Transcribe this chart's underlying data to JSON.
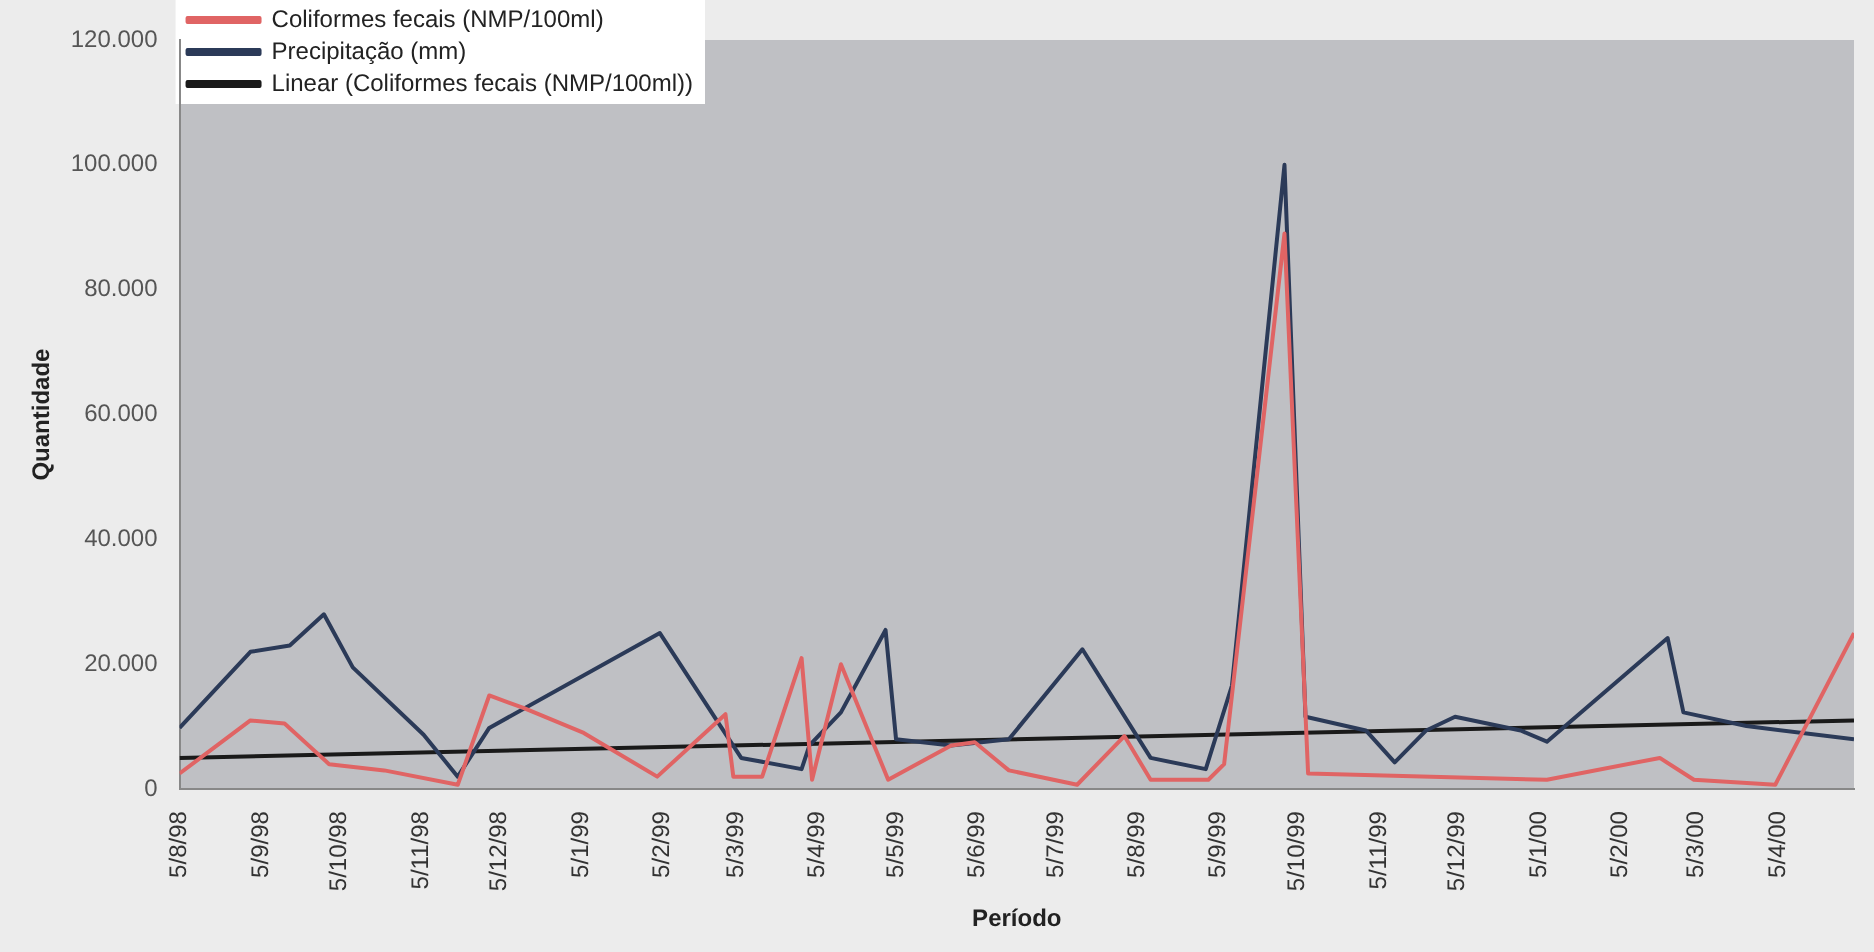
{
  "chart_data": {
    "type": "line",
    "xlabel": "Período",
    "ylabel": "Quantidade",
    "legend": "top left",
    "grid": false,
    "marker": "none",
    "xlim": [
      "1998-08-05",
      "2000-05-04"
    ],
    "xticks": [
      {
        "value": "1998-08-05",
        "label": "5/8/98"
      },
      {
        "value": "1998-09-05",
        "label": "5/9/98"
      },
      {
        "value": "1998-10-05",
        "label": "5/10/98"
      },
      {
        "value": "1998-11-05",
        "label": "5/11/98"
      },
      {
        "value": "1998-12-05",
        "label": "5/12/98"
      },
      {
        "value": "1999-01-05",
        "label": "5/1/99"
      },
      {
        "value": "1999-02-05",
        "label": "5/2/99"
      },
      {
        "value": "1999-03-05",
        "label": "5/3/99"
      },
      {
        "value": "1999-04-05",
        "label": "5/4/99"
      },
      {
        "value": "1999-05-05",
        "label": "5/5/99"
      },
      {
        "value": "1999-06-05",
        "label": "5/6/99"
      },
      {
        "value": "1999-07-05",
        "label": "5/7/99"
      },
      {
        "value": "1999-08-05",
        "label": "5/8/99"
      },
      {
        "value": "1999-09-05",
        "label": "5/9/99"
      },
      {
        "value": "1999-10-05",
        "label": "5/10/99"
      },
      {
        "value": "1999-11-05",
        "label": "5/11/99"
      },
      {
        "value": "1999-12-05",
        "label": "5/12/99"
      },
      {
        "value": "2000-01-05",
        "label": "5/1/00"
      },
      {
        "value": "2000-02-05",
        "label": "5/2/00"
      },
      {
        "value": "2000-03-05",
        "label": "5/3/00"
      },
      {
        "value": "2000-04-05",
        "label": "5/4/00"
      }
    ],
    "ylim": [
      0,
      120000
    ],
    "yticks": [
      {
        "value": 0,
        "label": "0"
      },
      {
        "value": 20000,
        "label": "20.000"
      },
      {
        "value": 40000,
        "label": "40.000"
      },
      {
        "value": 60000,
        "label": "60.000"
      },
      {
        "value": 80000,
        "label": "80.000"
      },
      {
        "value": 100000,
        "label": "100.000"
      },
      {
        "value": 120000,
        "label": "120.000"
      }
    ],
    "series": [
      {
        "name": "Coliformes fecais (NMP/100ml)",
        "color": "#e06464",
        "x": [
          "1998-08-05",
          "1998-09-01",
          "1998-09-14",
          "1998-10-01",
          "1998-10-22",
          "1998-11-19",
          "1998-12-01",
          "1998-12-14",
          "1999-01-06",
          "1999-02-03",
          "1999-03-01",
          "1999-03-04",
          "1999-03-15",
          "1999-03-30",
          "1999-04-03",
          "1999-04-14",
          "1999-05-02",
          "1999-05-26",
          "1999-06-04",
          "1999-06-17",
          "1999-07-13",
          "1999-07-31",
          "1999-08-10",
          "1999-09-01",
          "1999-09-07",
          "1999-09-30",
          "1999-10-09",
          "2000-01-08",
          "2000-02-20",
          "2000-03-04",
          "2000-04-04",
          "2000-05-04"
        ],
        "values": [
          2500,
          11000,
          10500,
          4000,
          3000,
          700,
          15000,
          13000,
          9000,
          2000,
          12000,
          2000,
          2000,
          21000,
          1500,
          20000,
          1500,
          7000,
          7500,
          3000,
          700,
          8500,
          1500,
          1500,
          4000,
          89000,
          2500,
          1500,
          5000,
          1500,
          700,
          25000
        ]
      },
      {
        "name": "Precipitação (mm)",
        "color": "#2b3a58",
        "x": [
          "1998-08-05",
          "1998-09-01",
          "1998-09-16",
          "1998-09-29",
          "1998-10-10",
          "1998-11-06",
          "1998-11-19",
          "1998-12-01",
          "1999-02-04",
          "1999-03-07",
          "1999-03-30",
          "1999-04-02",
          "1999-04-14",
          "1999-05-01",
          "1999-05-05",
          "1999-05-26",
          "1999-06-17",
          "1999-07-15",
          "1999-08-10",
          "1999-08-31",
          "1999-09-10",
          "1999-09-30",
          "1999-10-08",
          "1999-10-31",
          "1999-11-11",
          "1999-11-23",
          "1999-12-04",
          "1999-12-29",
          "2000-01-08",
          "2000-02-23",
          "2000-02-29",
          "2000-03-24",
          "2000-05-04"
        ],
        "values": [
          9800,
          22000,
          23000,
          28000,
          19500,
          8700,
          2000,
          9800,
          25000,
          5000,
          3200,
          7000,
          12300,
          25500,
          8000,
          7000,
          8000,
          22400,
          5000,
          3200,
          16600,
          100000,
          11600,
          9400,
          4300,
          9400,
          11600,
          9400,
          7600,
          24200,
          12300,
          10100,
          8000
        ]
      },
      {
        "name": "Linear (Coliformes fecais (NMP/100ml))",
        "color": "#1a1a1a",
        "x": [
          "1998-08-05",
          "2000-05-04"
        ],
        "values": [
          5000,
          11000
        ]
      }
    ]
  }
}
